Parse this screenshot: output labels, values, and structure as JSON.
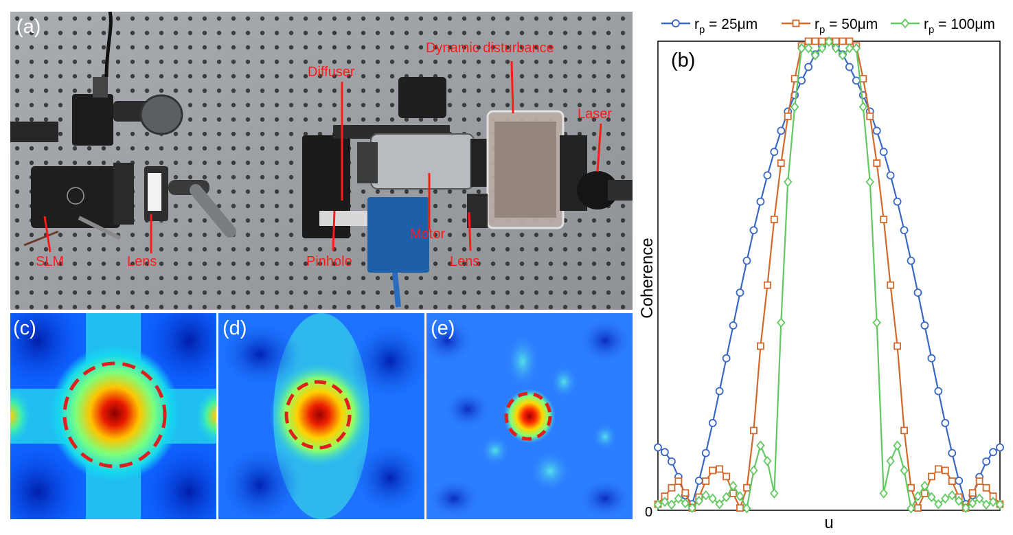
{
  "panels": {
    "a": "(a)",
    "b": "(b)",
    "c": "(c)",
    "d": "(d)",
    "e": "(e)"
  },
  "photo_labels": {
    "diffuser": "Diffuser",
    "dynamic_disturbance": "Dynamic disturbance",
    "laser": "Laser",
    "slm": "SLM",
    "lens_left": "Lens",
    "pinhole": "Pinhole",
    "motor": "Motor",
    "lens_right": "Lens"
  },
  "colors": {
    "annotation": "#ff1a1a",
    "series_25": "#3a67c4",
    "series_50": "#d2692a",
    "series_100": "#62c862"
  },
  "heatmaps": [
    {
      "panel": "c",
      "colormap": "jet",
      "pattern": "broad central peak, cross-shaped side lobes",
      "circle_dashed": true
    },
    {
      "panel": "d",
      "colormap": "jet",
      "pattern": "medium central peak",
      "circle_dashed": true
    },
    {
      "panel": "e",
      "colormap": "jet",
      "pattern": "narrow central peak, speckled background",
      "circle_dashed": true
    }
  ],
  "chart_data": {
    "type": "line",
    "title": "",
    "xlabel": "u",
    "ylabel": "Coherence",
    "ytick_labels": [
      "0"
    ],
    "xlim": [
      -1,
      1
    ],
    "ylim": [
      0,
      1
    ],
    "legend_position": "top",
    "grid": false,
    "x": [
      -1.0,
      -0.96,
      -0.92,
      -0.88,
      -0.84,
      -0.8,
      -0.76,
      -0.72,
      -0.68,
      -0.64,
      -0.6,
      -0.56,
      -0.52,
      -0.48,
      -0.44,
      -0.4,
      -0.36,
      -0.32,
      -0.28,
      -0.24,
      -0.2,
      -0.16,
      -0.12,
      -0.08,
      -0.04,
      0.0,
      0.04,
      0.08,
      0.12,
      0.16,
      0.2,
      0.24,
      0.28,
      0.32,
      0.36,
      0.4,
      0.44,
      0.48,
      0.52,
      0.56,
      0.6,
      0.64,
      0.68,
      0.72,
      0.76,
      0.8,
      0.84,
      0.88,
      0.92,
      0.96,
      1.0
    ],
    "series": [
      {
        "name": "r_p = 25μm",
        "legend_base": "r",
        "legend_sub": "p",
        "legend_rest": " = 25μm",
        "marker": "circle",
        "values": [
          0.134,
          0.124,
          0.104,
          0.071,
          0.032,
          0.013,
          0.063,
          0.122,
          0.186,
          0.254,
          0.324,
          0.394,
          0.464,
          0.532,
          0.597,
          0.658,
          0.714,
          0.764,
          0.809,
          0.85,
          0.885,
          0.916,
          0.945,
          0.972,
          0.99,
          1.0,
          0.99,
          0.972,
          0.945,
          0.916,
          0.885,
          0.85,
          0.809,
          0.764,
          0.714,
          0.658,
          0.597,
          0.532,
          0.464,
          0.394,
          0.324,
          0.254,
          0.186,
          0.122,
          0.063,
          0.013,
          0.032,
          0.071,
          0.104,
          0.124,
          0.134
        ]
      },
      {
        "name": "r_p = 50μm",
        "legend_base": "r",
        "legend_sub": "p",
        "legend_rest": " = 50μm",
        "marker": "square",
        "values": [
          0.013,
          0.03,
          0.048,
          0.062,
          0.037,
          0.005,
          0.028,
          0.062,
          0.085,
          0.088,
          0.072,
          0.036,
          0.005,
          0.048,
          0.17,
          0.35,
          0.48,
          0.62,
          0.74,
          0.84,
          0.92,
          0.99,
          1.0,
          1.0,
          1.0,
          1.0,
          1.0,
          1.0,
          1.0,
          0.99,
          0.92,
          0.84,
          0.74,
          0.62,
          0.48,
          0.35,
          0.17,
          0.048,
          0.005,
          0.036,
          0.072,
          0.088,
          0.085,
          0.062,
          0.028,
          0.005,
          0.037,
          0.062,
          0.048,
          0.03,
          0.013
        ]
      },
      {
        "name": "r_p = 100μm",
        "legend_base": "r",
        "legend_sub": "p",
        "legend_rest": " = 100μm",
        "marker": "diamond",
        "values": [
          0.012,
          0.018,
          0.012,
          0.025,
          0.015,
          0.005,
          0.02,
          0.032,
          0.025,
          0.013,
          0.028,
          0.052,
          0.03,
          0.004,
          0.085,
          0.138,
          0.105,
          0.036,
          0.4,
          0.7,
          0.86,
          0.985,
          0.985,
          0.97,
          0.985,
          0.999,
          0.985,
          0.97,
          0.985,
          0.985,
          0.86,
          0.7,
          0.4,
          0.036,
          0.105,
          0.138,
          0.085,
          0.004,
          0.03,
          0.052,
          0.028,
          0.013,
          0.025,
          0.032,
          0.02,
          0.005,
          0.015,
          0.025,
          0.012,
          0.018,
          0.012
        ]
      }
    ]
  }
}
